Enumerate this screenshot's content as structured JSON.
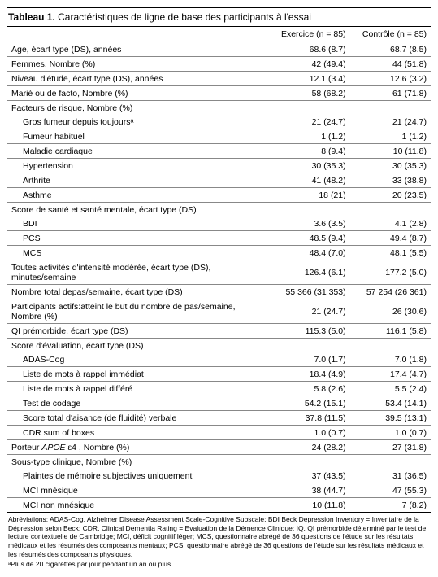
{
  "title_bold": "Tableau 1.",
  "title_rest": "Caractéristiques de ligne de base des participants à l'essai",
  "headers": {
    "col1": "",
    "col2": "Exercice (n = 85)",
    "col3": "Contrôle (n = 85)"
  },
  "rows": [
    {
      "label": "Age, écart type (DS), années",
      "c1": "68.6 (8.7)",
      "c2": "68.7 (8.5)",
      "indent": false,
      "border": true
    },
    {
      "label": "Femmes, Nombre (%)",
      "c1": "42 (49.4)",
      "c2": "44 (51.8)",
      "indent": false,
      "border": true
    },
    {
      "label": "Niveau d'étude, écart type (DS), années",
      "c1": "12.1 (3.4)",
      "c2": "12.6 (3.2)",
      "indent": false,
      "border": true
    },
    {
      "label": "Marié ou de facto, Nombre (%)",
      "c1": "58 (68.2)",
      "c2": "61 (71.8)",
      "indent": false,
      "border": true
    },
    {
      "label": "Facteurs de risque, Nombre (%)",
      "c1": "",
      "c2": "",
      "indent": false,
      "border": false
    },
    {
      "label": "Gros fumeur depuis toujoursᵃ",
      "c1": "21 (24.7)",
      "c2": "21 (24.7)",
      "indent": true,
      "border": true
    },
    {
      "label": "Fumeur habituel",
      "c1": "1 (1.2)",
      "c2": "1 (1.2)",
      "indent": true,
      "border": true
    },
    {
      "label": "Maladie cardiaque",
      "c1": "8 (9.4)",
      "c2": "10 (11.8)",
      "indent": true,
      "border": true
    },
    {
      "label": "Hypertension",
      "c1": "30 (35.3)",
      "c2": "30 (35.3)",
      "indent": true,
      "border": true
    },
    {
      "label": "Arthrite",
      "c1": "41 (48.2)",
      "c2": "33 (38.8)",
      "indent": true,
      "border": true
    },
    {
      "label": "Asthme",
      "c1": "18 (21)",
      "c2": "20 (23.5)",
      "indent": true,
      "border": true
    },
    {
      "label": "Score de santé et santé mentale, écart type (DS)",
      "c1": "",
      "c2": "",
      "indent": false,
      "border": false
    },
    {
      "label": "BDI",
      "c1": "3.6 (3.5)",
      "c2": "4.1 (2.8)",
      "indent": true,
      "border": true
    },
    {
      "label": "PCS",
      "c1": "48.5 (9.4)",
      "c2": "49.4 (8.7)",
      "indent": true,
      "border": true
    },
    {
      "label": "MCS",
      "c1": "48.4 (7.0)",
      "c2": "48.1 (5.5)",
      "indent": true,
      "border": true
    },
    {
      "label": "Toutes activités d'intensité modérée, écart type (DS), minutes/semaine",
      "c1": "126.4 (6.1)",
      "c2": "177.2 (5.0)",
      "indent": false,
      "border": true
    },
    {
      "label": "Nombre total depas/semaine, écart type (DS)",
      "c1": "55 366 (31 353)",
      "c2": "57 254 (26 361)",
      "indent": false,
      "border": true
    },
    {
      "label": "Participants actifs:atteint le but du nombre de pas/semaine, Nombre (%)",
      "c1": "21 (24.7)",
      "c2": "26 (30.6)",
      "indent": false,
      "border": true
    },
    {
      "label": "QI prémorbide, écart type (DS)",
      "c1": "115.3 (5.0)",
      "c2": "116.1 (5.8)",
      "indent": false,
      "border": true
    },
    {
      "label": "Score d'évaluation, écart type (DS)",
      "c1": "",
      "c2": "",
      "indent": false,
      "border": false
    },
    {
      "label": "ADAS-Cog",
      "c1": "7.0 (1.7)",
      "c2": "7.0 (1.8)",
      "indent": true,
      "border": true
    },
    {
      "label": "Liste de mots à rappel immédiat",
      "c1": "18.4 (4.9)",
      "c2": "17.4 (4.7)",
      "indent": true,
      "border": true
    },
    {
      "label": "Liste de mots à rappel différé",
      "c1": "5.8 (2.6)",
      "c2": "5.5 (2.4)",
      "indent": true,
      "border": true
    },
    {
      "label": "Test de codage",
      "c1": "54.2 (15.1)",
      "c2": "53.4 (14.1)",
      "indent": true,
      "border": true
    },
    {
      "label": "Score total d'aisance (de fluidité) verbale",
      "c1": "37.8 (11.5)",
      "c2": "39.5 (13.1)",
      "indent": true,
      "border": true
    },
    {
      "label": "CDR sum of boxes",
      "c1": "1.0 (0.7)",
      "c2": "1.0 (0.7)",
      "indent": true,
      "border": true
    },
    {
      "label": "Porteur APOE ε4 , Nombre (%)",
      "c1": "24 (28.2)",
      "c2": "27 (31.8)",
      "indent": false,
      "border": true,
      "italic_sub": "APOE"
    },
    {
      "label": "Sous-type clinique, Nombre (%)",
      "c1": "",
      "c2": "",
      "indent": false,
      "border": false
    },
    {
      "label": "Plaintes de mémoire subjectives uniquement",
      "c1": "37 (43.5)",
      "c2": "31 (36.5)",
      "indent": true,
      "border": true
    },
    {
      "label": "MCI mnésique",
      "c1": "38 (44.7)",
      "c2": "47 (55.3)",
      "indent": true,
      "border": true
    },
    {
      "label": "MCI non mnésique",
      "c1": "10 (11.8)",
      "c2": "7 (8.2)",
      "indent": true,
      "border": false
    }
  ],
  "footnotes": {
    "abbrev": "Abréviations: ADAS-Cog, Alzheimer Disease Assessment Scale-Cognitive Subscale; BDI Beck Depression Inventory = Inventaire de la Dépression selon Beck; CDR, Clinical Dementia Rating = Evaluation de la Démence Clinique; IQ, QI prémorbide déterminé par le test de lecture contextuelle de Cambridge; MCI, déficit cognitif léger; MCS, questionnaire abrégé de 36 questions de l'étude sur les résultats médicaux et les résumés des composants mentaux; PCS, questionnaire abrégé de 36 questions de l'étude sur les résultats médicaux et les résumés des composants physiques.",
    "note_a": "ᵃPlus de 20 cigarettes par jour pendant un an ou plus."
  },
  "styling": {
    "font_family": "Arial, Helvetica, sans-serif",
    "title_fontsize": 12,
    "body_fontsize": 10.5,
    "footnote_fontsize": 8.5,
    "text_color": "#000000",
    "background_color": "#ffffff",
    "border_color_heavy": "#000000",
    "border_color_light": "#888888",
    "col_widths": [
      "62%",
      "19%",
      "19%"
    ]
  }
}
